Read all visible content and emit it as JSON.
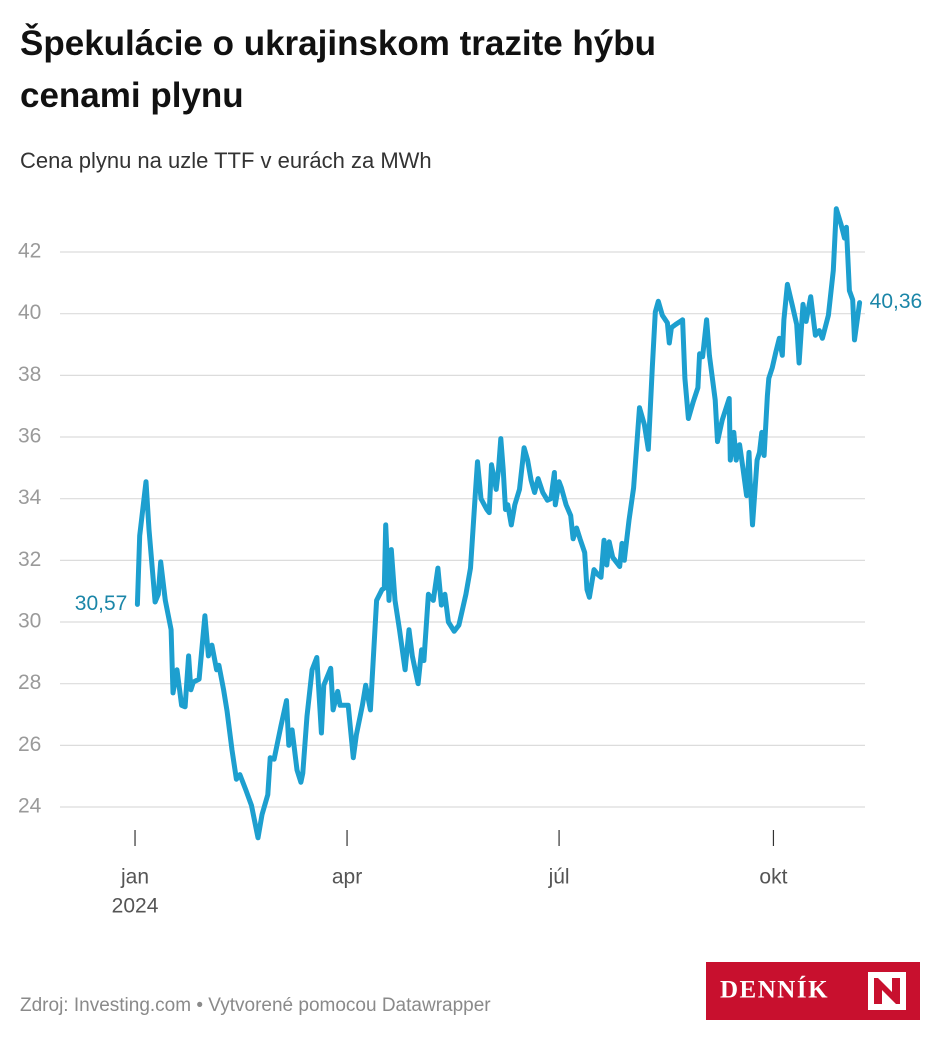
{
  "chart_data": {
    "type": "line",
    "title": "Špekulácie o ukrajinskom trazite hýbu cenami plynu",
    "subtitle": "Cena plynu na uzle TTF v eurách za MWh",
    "color": "#1d9fcf",
    "label_color": "#1b86a8",
    "grid": true,
    "ylim": [
      22.93,
      43.7
    ],
    "yticks": [
      24,
      26,
      28,
      30,
      32,
      34,
      36,
      38,
      40,
      42
    ],
    "xlim": [
      -31.2,
      314.3
    ],
    "xticks": [
      {
        "value": 1,
        "label": "jan"
      },
      {
        "value": 92,
        "label": "apr"
      },
      {
        "value": 183,
        "label": "júl"
      },
      {
        "value": 275,
        "label": "okt"
      }
    ],
    "x_year_label": "2024",
    "x": [
      2,
      3,
      5.7,
      7,
      9.6,
      11,
      12,
      14,
      16.5,
      17.3,
      19,
      21,
      22.5,
      24,
      25,
      26,
      28.5,
      31,
      32.5,
      34,
      36,
      37,
      39,
      40.5,
      42.6,
      44.5,
      46,
      48.6,
      51,
      53.8,
      55.5,
      58,
      59,
      60.7,
      61.5,
      63.7,
      66,
      67,
      68.4,
      70.5,
      72.2,
      73,
      74.8,
      77,
      79,
      81,
      82,
      85,
      86,
      88,
      89,
      92.5,
      94.7,
      96,
      98.6,
      100,
      102,
      104.7,
      107,
      108,
      108.6,
      110,
      111,
      112.6,
      114.5,
      116.9,
      118.6,
      120,
      122.5,
      124,
      125,
      126.9,
      129,
      131,
      132.5,
      134,
      135.5,
      138,
      140,
      143,
      145,
      147,
      148,
      149.5,
      152,
      153,
      154,
      156,
      157,
      158,
      159,
      160,
      161,
      162.5,
      164,
      166,
      168,
      169.5,
      171,
      172.5,
      174,
      176,
      178,
      179.5,
      181,
      181.4,
      183,
      184,
      186,
      188,
      189,
      190.5,
      192,
      194,
      195,
      196,
      198,
      199.5,
      201,
      202.3,
      203.5,
      204.5,
      206,
      207,
      209,
      210,
      211,
      213,
      215,
      217.5,
      219.6,
      221.3,
      223,
      224.3,
      225.6,
      227.3,
      229.5,
      230.3,
      231.2,
      233,
      235,
      236,
      237,
      238.5,
      240.6,
      242.6,
      243.3,
      244.6,
      246.3,
      247.5,
      250,
      251,
      253,
      256,
      256.5,
      258,
      259,
      260.5,
      262,
      263.5,
      264.5,
      265,
      266,
      268,
      269,
      270,
      271,
      272.4,
      273,
      274.5,
      276,
      277.5,
      278.8,
      279.5,
      281,
      283,
      285,
      286,
      287.7,
      289,
      291,
      293,
      294.7,
      296,
      298.6,
      300.7,
      302,
      304,
      305.5,
      306.3,
      307.6,
      309,
      309.8,
      312
    ],
    "values": [
      30.57,
      32.8,
      34.55,
      33.0,
      30.65,
      30.9,
      31.95,
      30.7,
      29.75,
      27.7,
      28.45,
      27.3,
      27.25,
      28.9,
      27.8,
      28.05,
      28.15,
      30.2,
      28.9,
      29.25,
      28.45,
      28.6,
      27.8,
      27.1,
      25.85,
      24.9,
      25.05,
      24.55,
      24.05,
      23.0,
      23.75,
      24.4,
      25.6,
      25.55,
      25.85,
      26.65,
      27.45,
      26.0,
      26.5,
      25.2,
      24.8,
      25.1,
      26.95,
      28.45,
      28.85,
      26.4,
      27.95,
      28.5,
      27.15,
      27.75,
      27.3,
      27.3,
      25.6,
      26.35,
      27.3,
      27.95,
      27.15,
      30.7,
      31.05,
      31.1,
      33.15,
      30.7,
      32.35,
      30.7,
      29.75,
      28.45,
      29.75,
      28.9,
      28.0,
      29.1,
      28.75,
      30.9,
      30.7,
      31.75,
      30.55,
      30.9,
      30.0,
      29.7,
      29.9,
      30.9,
      31.75,
      34.1,
      35.2,
      34.0,
      33.65,
      33.55,
      35.1,
      34.3,
      34.95,
      35.95,
      34.95,
      33.65,
      33.8,
      33.15,
      33.8,
      34.3,
      35.65,
      35.25,
      34.6,
      34.2,
      34.65,
      34.2,
      33.95,
      34.0,
      34.85,
      33.8,
      34.55,
      34.35,
      33.8,
      33.45,
      32.7,
      33.05,
      32.7,
      32.25,
      31.05,
      30.8,
      31.7,
      31.55,
      31.45,
      32.65,
      31.85,
      32.6,
      32.1,
      32.0,
      31.8,
      32.55,
      32.0,
      33.3,
      34.35,
      36.95,
      36.4,
      35.6,
      38.25,
      40.05,
      40.4,
      39.95,
      39.7,
      39.05,
      39.55,
      39.65,
      39.75,
      39.8,
      37.9,
      36.6,
      37.15,
      37.6,
      38.7,
      38.6,
      39.8,
      38.65,
      37.2,
      35.85,
      36.55,
      37.25,
      35.25,
      36.15,
      35.25,
      35.75,
      34.95,
      34.1,
      35.5,
      34.6,
      33.15,
      35.25,
      35.5,
      36.15,
      35.4,
      37.35,
      37.9,
      38.25,
      38.75,
      39.2,
      38.65,
      39.8,
      40.95,
      40.3,
      39.65,
      38.4,
      40.3,
      39.75,
      40.55,
      39.3,
      39.45,
      39.2,
      39.95,
      41.4,
      43.4,
      42.9,
      42.45,
      42.8,
      40.75,
      40.45,
      39.15,
      40.36
    ],
    "point_labels": [
      {
        "x": 2,
        "value": 30.57,
        "label": "30,57"
      },
      {
        "x": 312,
        "value": 40.36,
        "label": "40,36"
      }
    ],
    "source": "Zdroj: Investing.com • Vytvorené pomocou Datawrapper",
    "logo_text": "DENNÍK"
  }
}
